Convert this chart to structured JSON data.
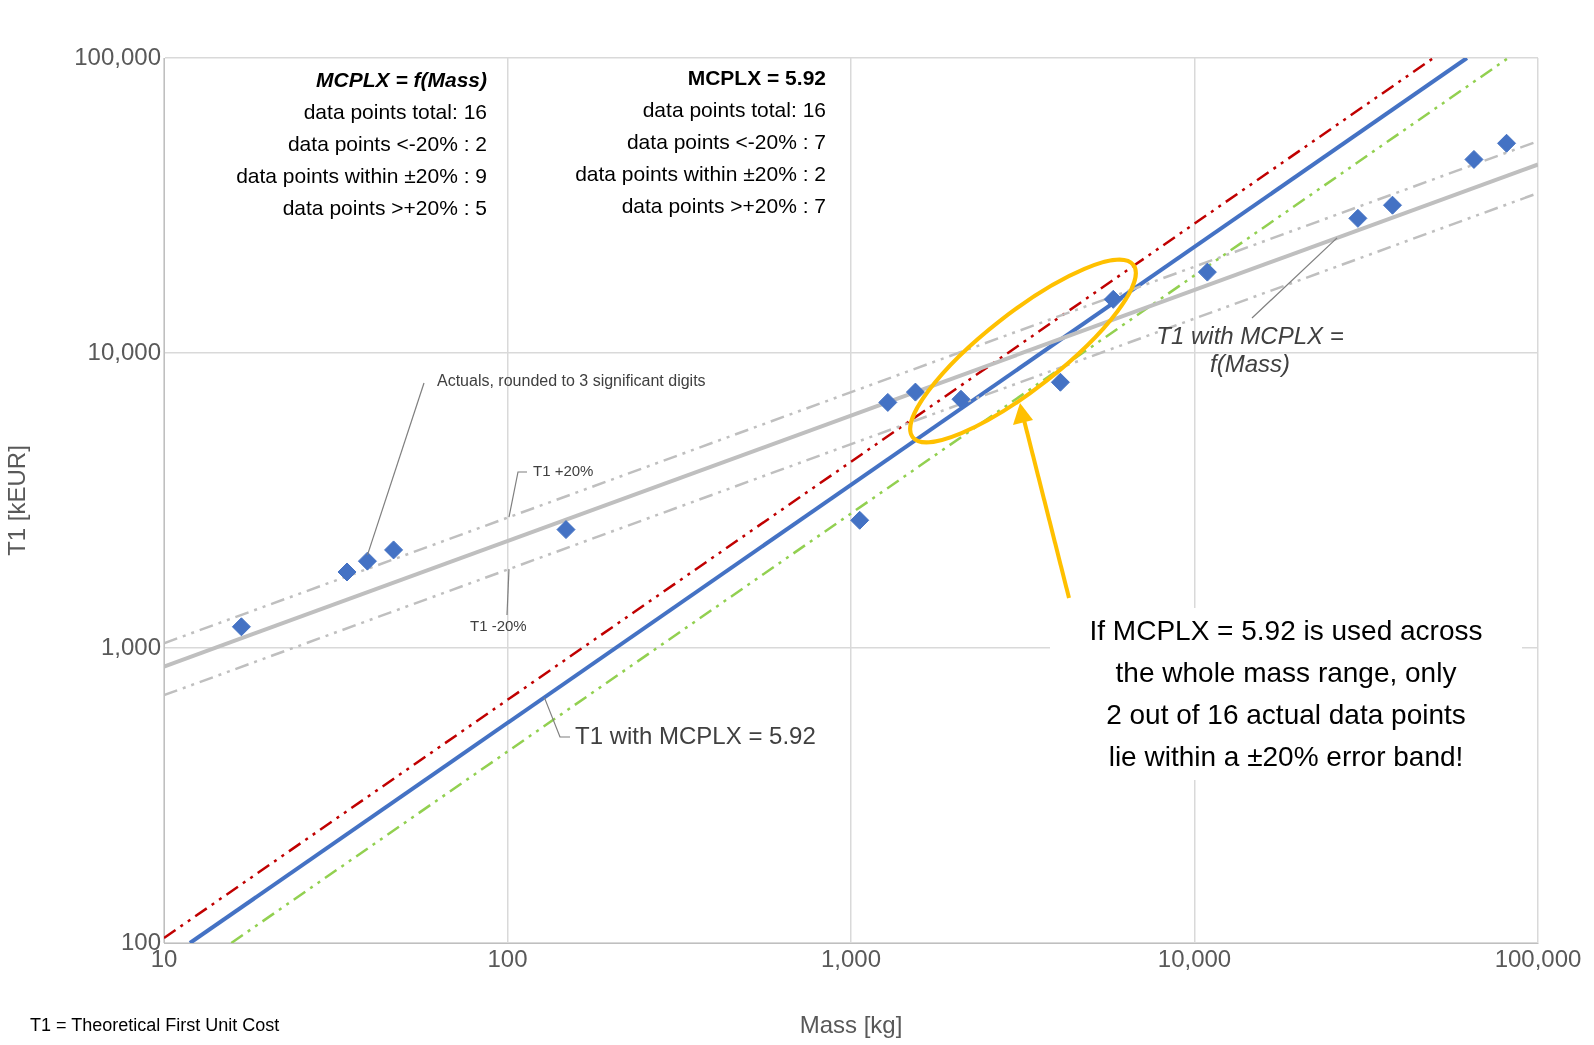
{
  "chart_data": {
    "type": "scatter",
    "xlabel": "Mass [kg]",
    "ylabel": "T1 [kEUR]",
    "log": "xy",
    "xlim": [
      10,
      100000
    ],
    "ylim": [
      100,
      100000
    ],
    "xticks": [
      10,
      100,
      {
        "value": 1000,
        "label": "1,000"
      },
      {
        "value": 10000,
        "label": "10,000"
      },
      {
        "value": 100000,
        "label": "100,000"
      }
    ],
    "yticks": [
      100,
      {
        "value": 1000,
        "label": "1,000"
      },
      {
        "value": 10000,
        "label": "10,000"
      },
      {
        "value": 100000,
        "label": "100,000"
      }
    ],
    "grid": true,
    "legend": false,
    "series": [
      {
        "name": "Actuals, rounded to 3 significant digits",
        "type": "scatter",
        "marker": "diamond",
        "color": "#4472c4",
        "x": [
          16.8,
          34.1,
          39.1,
          46.6,
          148,
          1060,
          1280,
          1540,
          2090,
          4070,
          5800,
          10900,
          29900,
          37700,
          65100,
          81000
        ],
        "values": [
          1180,
          1810,
          1970,
          2150,
          2520,
          2710,
          6800,
          7370,
          6970,
          7960,
          15200,
          18800,
          28600,
          31700,
          45300,
          51400
        ]
      },
      {
        "name": "T1 with MCPLX = f(Mass)",
        "type": "line",
        "line_style": "solid",
        "color": "#bfbfbf",
        "x": [
          10,
          100000
        ],
        "values": [
          865,
          43550
        ]
      },
      {
        "name": "T1 +20%",
        "type": "line",
        "line_style": "dashed",
        "color": "#bfbfbf",
        "x": [
          10,
          100000
        ],
        "values": [
          1038,
          52260
        ]
      },
      {
        "name": "T1 -20%",
        "type": "line",
        "line_style": "dashed",
        "color": "#bfbfbf",
        "x": [
          10,
          100000
        ],
        "values": [
          692,
          34840
        ]
      },
      {
        "name": "T1 with MCPLX = 5.92",
        "type": "line",
        "line_style": "solid",
        "color": "#4472c4",
        "x": [
          11.9,
          62100
        ],
        "values": [
          100,
          100000
        ]
      },
      {
        "type": "line",
        "line_style": "dashed",
        "color": "#c00000",
        "x": [
          10,
          49600
        ],
        "values": [
          104,
          100000
        ]
      },
      {
        "type": "line",
        "line_style": "dashed",
        "color": "#92d050",
        "x": [
          15.7,
          81900
        ],
        "values": [
          100,
          100000
        ]
      }
    ],
    "annotations": [
      "MCPLX = f(Mass)\ndata points total: 16\ndata points <-20% :  2\ndata points within ±20% :  9\ndata points >+20% :  5",
      "MCPLX = 5.92\ndata points total: 16\ndata points <-20% :  7\ndata points within ±20% :  2\ndata points >+20% :  7",
      "If MCPLX = 5.92 is used across\nthe whole mass range, only\n2 out of 16 actual data points\nlie within a ±20% error band!",
      "T1 = Theoretical First Unit Cost"
    ]
  }
}
